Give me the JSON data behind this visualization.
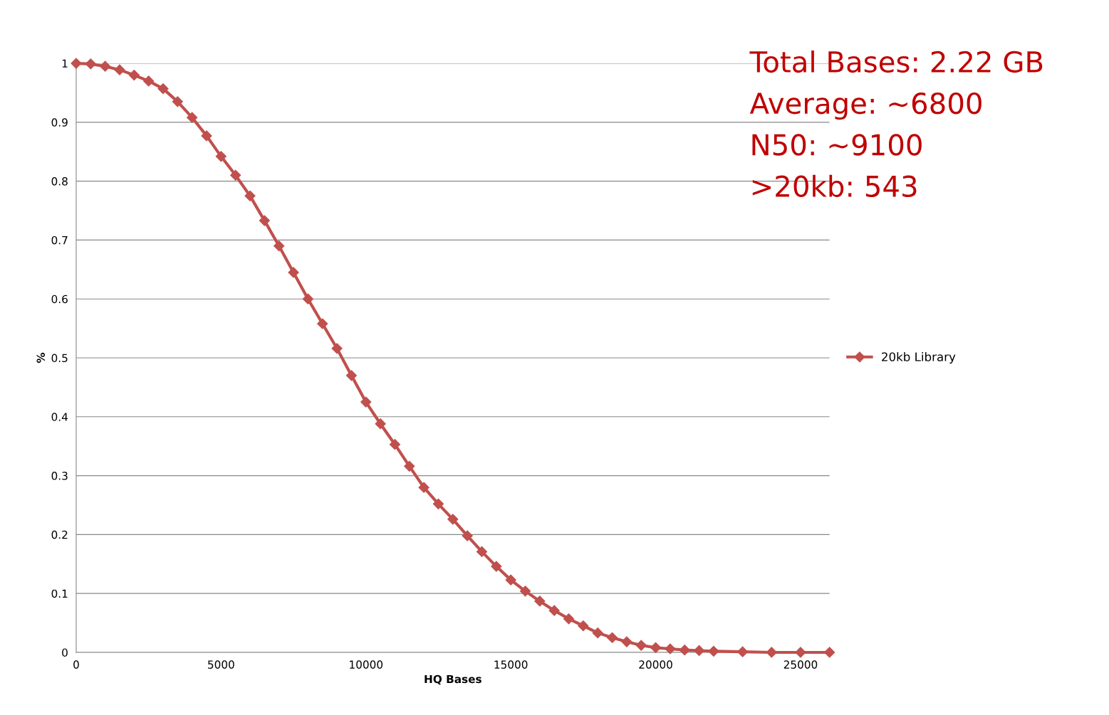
{
  "chart_data": {
    "type": "line",
    "xlabel": "HQ Bases",
    "ylabel": "%",
    "x": [
      0,
      500,
      1000,
      1500,
      2000,
      2500,
      3000,
      3500,
      4000,
      4500,
      5000,
      5500,
      6000,
      6500,
      7000,
      7500,
      8000,
      8500,
      9000,
      9500,
      10000,
      10500,
      11000,
      11500,
      12000,
      12500,
      13000,
      13500,
      14000,
      14500,
      15000,
      15500,
      16000,
      16500,
      17000,
      17500,
      18000,
      18500,
      19000,
      19500,
      20000,
      20500,
      21000,
      21500,
      22000,
      23000,
      24000,
      25000,
      26000
    ],
    "series": [
      {
        "name": "20kb Library",
        "color": "#c0504d",
        "values": [
          1.0,
          0.999,
          0.995,
          0.989,
          0.98,
          0.97,
          0.957,
          0.935,
          0.908,
          0.877,
          0.842,
          0.81,
          0.775,
          0.733,
          0.69,
          0.645,
          0.6,
          0.558,
          0.516,
          0.47,
          0.425,
          0.388,
          0.353,
          0.316,
          0.28,
          0.252,
          0.226,
          0.198,
          0.171,
          0.146,
          0.123,
          0.104,
          0.087,
          0.071,
          0.057,
          0.045,
          0.033,
          0.025,
          0.018,
          0.012,
          0.008,
          0.006,
          0.004,
          0.003,
          0.002,
          0.001,
          0.0,
          0.0,
          0.0
        ]
      }
    ],
    "xlim": [
      0,
      26000
    ],
    "xticks": [
      0,
      5000,
      10000,
      15000,
      20000,
      25000
    ],
    "ylim": [
      0,
      1
    ],
    "yticks": [
      0,
      0.1,
      0.2,
      0.3,
      0.4,
      0.5,
      0.6,
      0.7,
      0.8,
      0.9,
      1
    ],
    "grid": "y",
    "legend": "right",
    "marker": "diamond",
    "line_style": "solid",
    "annotations": [
      "Total Bases: 2.22 GB",
      "Average: ~6800",
      "N50: ~9100",
      ">20kb: 543"
    ]
  }
}
